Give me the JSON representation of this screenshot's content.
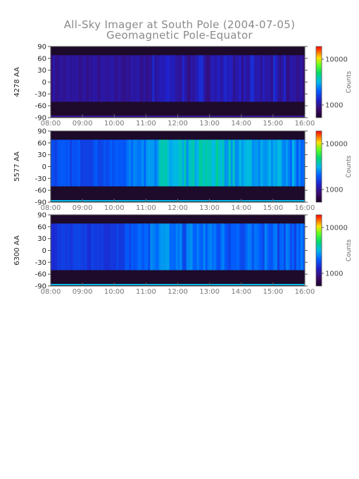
{
  "chart_data": {
    "type": "heatmap",
    "title": "All-Sky Imager at South Pole (2004-07-05)",
    "subtitle": "Geomagnetic Pole-Equator",
    "x_ticks": [
      "08:00",
      "09:00",
      "10:00",
      "11:00",
      "12:00",
      "13:00",
      "14:00",
      "15:00",
      "16:00"
    ],
    "y_ticks": [
      "90",
      "60",
      "30",
      "0",
      "-30",
      "-60",
      "-90"
    ],
    "xlim": [
      "08:00",
      "16:00"
    ],
    "ylim": [
      -90,
      90
    ],
    "colorbar": {
      "label": "Counts",
      "ticks": [
        "10000",
        "1000"
      ],
      "scale": "log"
    },
    "panels": [
      {
        "label": "4278 AA",
        "valid_lat_range": [
          -50,
          68
        ],
        "levels": [
          {
            "t": "08:00",
            "v": 0.18
          },
          {
            "t": "09:00",
            "v": 0.18
          },
          {
            "t": "10:00",
            "v": 0.18
          },
          {
            "t": "11:00",
            "v": 0.19
          },
          {
            "t": "11:30",
            "v": 0.24
          },
          {
            "t": "12:00",
            "v": 0.2
          },
          {
            "t": "13:00",
            "v": 0.22
          },
          {
            "t": "14:00",
            "v": 0.21
          },
          {
            "t": "15:00",
            "v": 0.2
          },
          {
            "t": "16:00",
            "v": 0.19
          }
        ]
      },
      {
        "label": "5577 AA",
        "valid_lat_range": [
          -50,
          68
        ],
        "levels": [
          {
            "t": "08:00",
            "v": 0.34
          },
          {
            "t": "09:00",
            "v": 0.34
          },
          {
            "t": "10:00",
            "v": 0.35
          },
          {
            "t": "11:00",
            "v": 0.45
          },
          {
            "t": "11:30",
            "v": 0.52
          },
          {
            "t": "12:00",
            "v": 0.47
          },
          {
            "t": "13:00",
            "v": 0.55
          },
          {
            "t": "14:00",
            "v": 0.48
          },
          {
            "t": "15:00",
            "v": 0.46
          },
          {
            "t": "16:00",
            "v": 0.42
          }
        ]
      },
      {
        "label": "6300 AA",
        "valid_lat_range": [
          -50,
          68
        ],
        "levels": [
          {
            "t": "08:00",
            "v": 0.3
          },
          {
            "t": "09:00",
            "v": 0.3
          },
          {
            "t": "10:00",
            "v": 0.31
          },
          {
            "t": "11:00",
            "v": 0.39
          },
          {
            "t": "11:30",
            "v": 0.42
          },
          {
            "t": "12:00",
            "v": 0.39
          },
          {
            "t": "13:00",
            "v": 0.4
          },
          {
            "t": "14:00",
            "v": 0.38
          },
          {
            "t": "15:00",
            "v": 0.37
          },
          {
            "t": "16:00",
            "v": 0.36
          }
        ]
      }
    ]
  }
}
